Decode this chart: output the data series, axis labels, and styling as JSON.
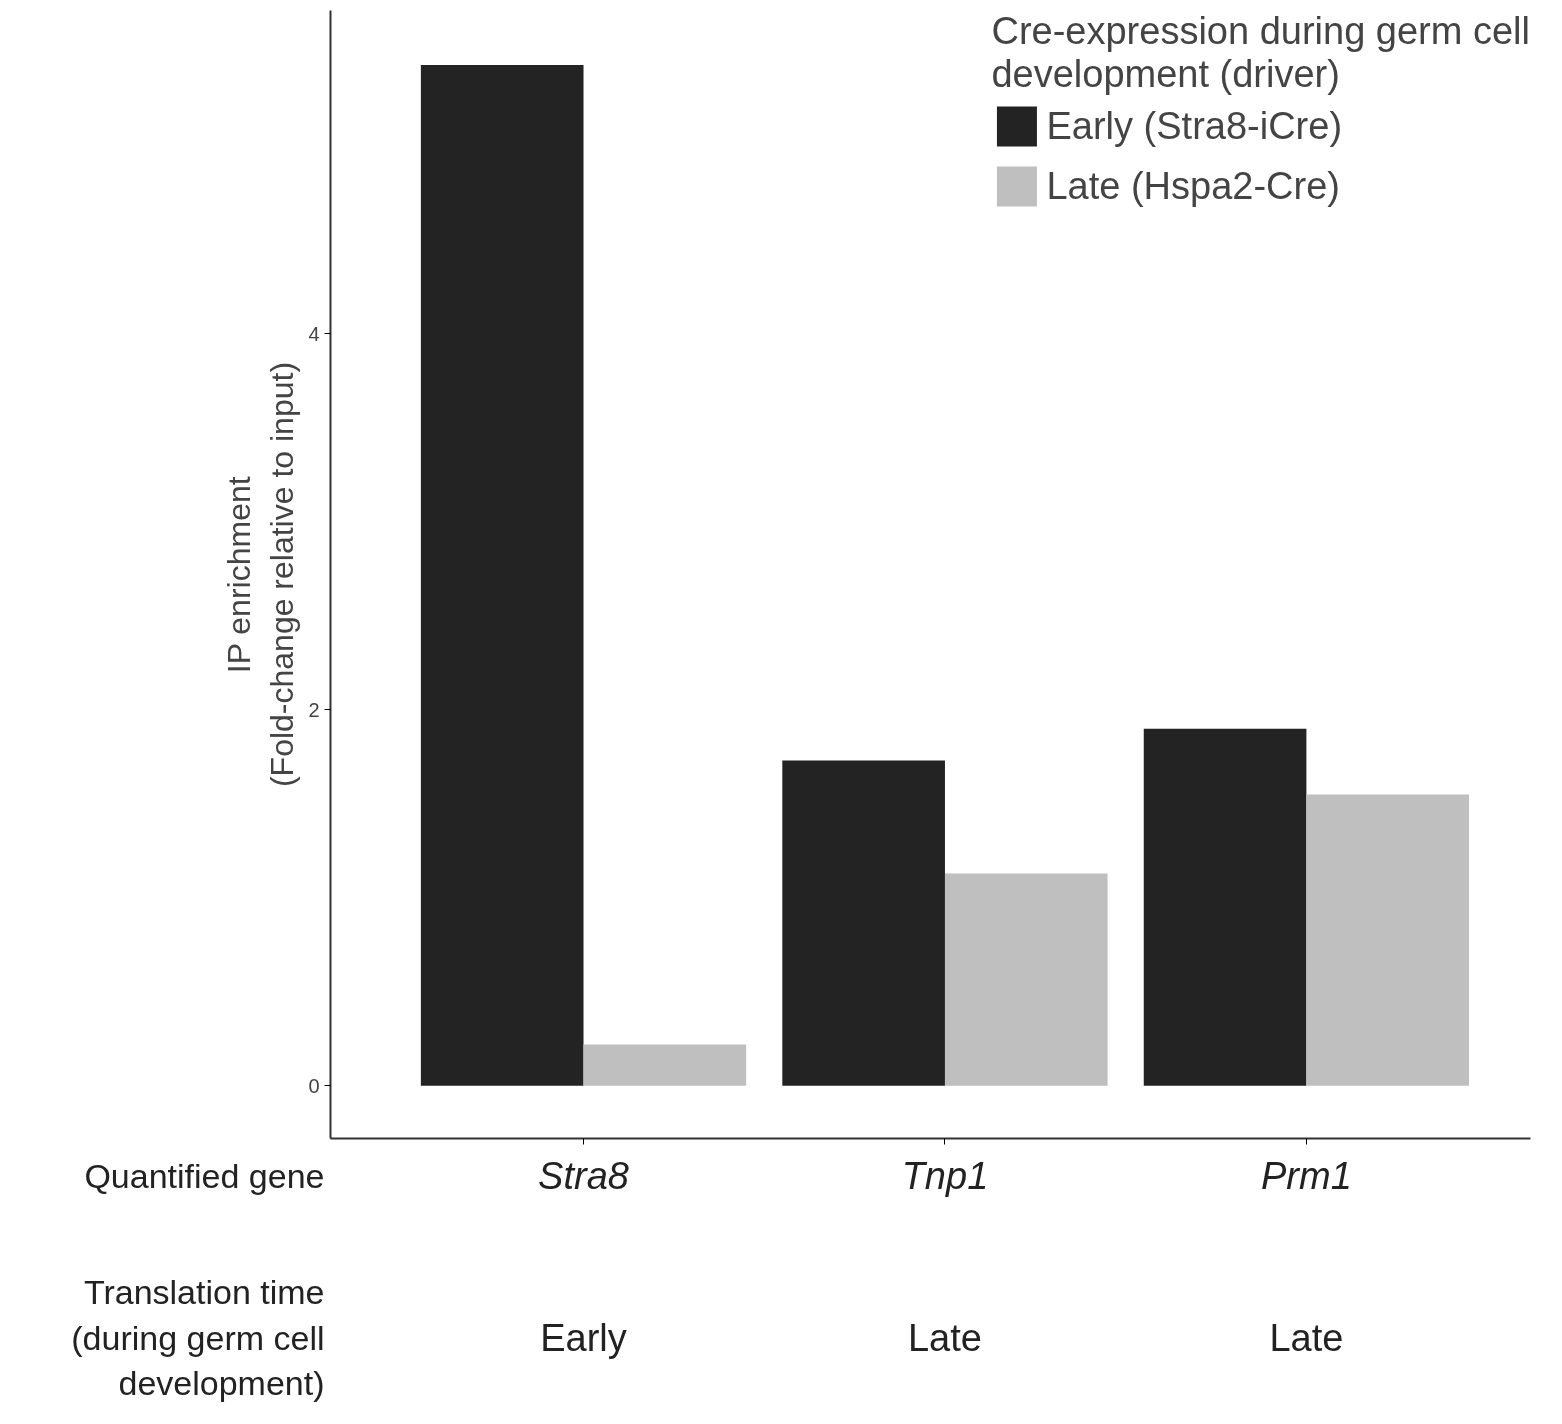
{
  "chart_data": {
    "type": "bar",
    "ylabel": "IP enrichment\n(Fold-change relative to input)",
    "categories": [
      "Stra8",
      "Tnp1",
      "Prm1"
    ],
    "series": [
      {
        "name": "Early (Stra8-iCre)",
        "color": "#232323",
        "values": [
          5.43,
          1.73,
          1.9
        ]
      },
      {
        "name": "Late (Hspa2-Cre)",
        "color": "#bfbfbf",
        "values": [
          0.22,
          1.13,
          1.55
        ]
      }
    ],
    "legend_title": "Cre-expression during germ cell\ndevelopment (driver)",
    "legend": "top right",
    "ylim": [
      -0.28,
      5.72
    ],
    "yticks": [
      0,
      2,
      4
    ],
    "grid": false,
    "annotations": [
      "Quantified gene",
      "Translation time\n(during germ cell\ndevelopment)",
      "Early",
      "Late",
      "Late"
    ]
  }
}
